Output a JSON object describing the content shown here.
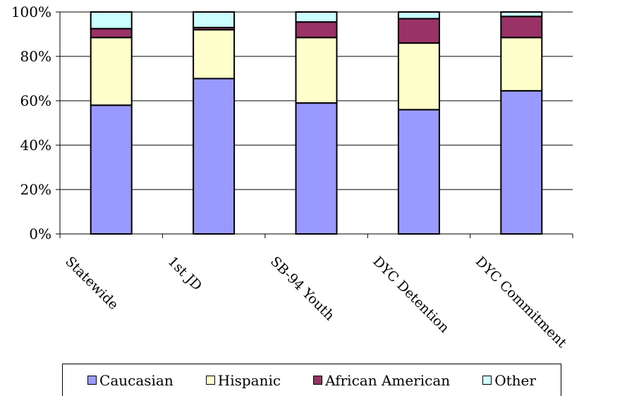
{
  "chart_data": {
    "type": "bar",
    "stacked": true,
    "normalized": true,
    "categories": [
      "Statewide",
      "1st JD",
      "SB-94 Youth",
      "DYC Detention",
      "DYC Commitment"
    ],
    "series": [
      {
        "name": "Caucasian",
        "color": "#9999ff",
        "values": [
          58,
          70,
          59,
          56,
          64.5
        ]
      },
      {
        "name": "Hispanic",
        "color": "#ffffcc",
        "values": [
          30.5,
          22,
          29.5,
          30,
          24
        ]
      },
      {
        "name": "African American",
        "color": "#993366",
        "values": [
          4,
          1,
          7,
          11,
          9.5
        ]
      },
      {
        "name": "Other",
        "color": "#ccffff",
        "values": [
          7.5,
          7,
          4.5,
          3,
          2
        ]
      }
    ],
    "yticks": [
      "0%",
      "20%",
      "40%",
      "60%",
      "80%",
      "100%"
    ],
    "ylim": [
      0,
      100
    ],
    "grid": true,
    "legend": "bottom"
  }
}
